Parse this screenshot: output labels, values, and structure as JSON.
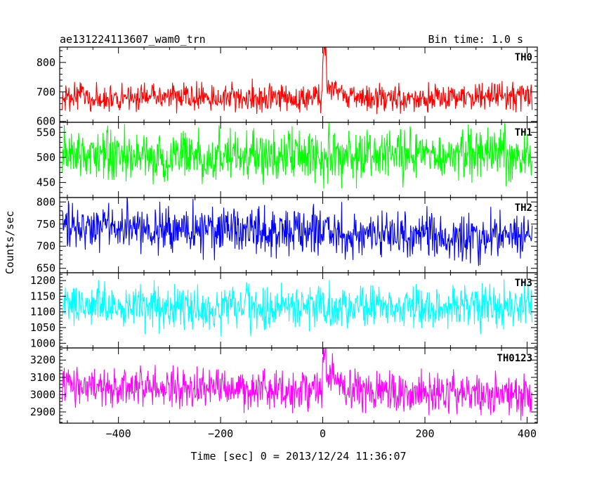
{
  "chart_data": {
    "type": "line",
    "title_left": "ae131224113607_wam0_trn",
    "title_right": "Bin time: 1.0 s",
    "xlabel": "Time [sec] 0 = 2013/12/24 11:36:07",
    "ylabel": "Counts/sec",
    "xlim": [
      -515,
      420
    ],
    "x_ticks": [
      -400,
      -200,
      0,
      200,
      400
    ],
    "x_data_range": [
      -510,
      410
    ],
    "bin_time_sec": 1.0,
    "grid": false,
    "panels": [
      {
        "name": "TH0",
        "color": "#ff0000",
        "ylim": [
          597,
          852
        ],
        "y_ticks": [
          600,
          700,
          800
        ],
        "baseline_mean": 680,
        "noise_halfwidth": 55,
        "features": [
          {
            "x_start": 0,
            "x_end": 8,
            "level": 840,
            "description": "spike"
          },
          {
            "x_start": 8,
            "x_end": 40,
            "level": 710,
            "description": "elevated decay"
          }
        ]
      },
      {
        "name": "TH1",
        "color": "#00ff00",
        "ylim": [
          420,
          570
        ],
        "y_ticks": [
          450,
          500,
          550
        ],
        "baseline_mean": 505,
        "noise_halfwidth": 60,
        "features": []
      },
      {
        "name": "TH2",
        "color": "#0000ff",
        "ylim": [
          640,
          810
        ],
        "y_ticks": [
          650,
          700,
          750,
          800
        ],
        "baseline_start": 745,
        "baseline_end": 720,
        "noise_halfwidth": 60,
        "features": []
      },
      {
        "name": "TH3",
        "color": "#00ffff",
        "ylim": [
          985,
          1225
        ],
        "y_ticks": [
          1000,
          1050,
          1100,
          1150,
          1200
        ],
        "baseline_mean": 1115,
        "noise_halfwidth": 80,
        "features": []
      },
      {
        "name": "TH0123",
        "color": "#ff00ff",
        "ylim": [
          2835,
          3270
        ],
        "y_ticks": [
          2900,
          3000,
          3100,
          3200
        ],
        "baseline_start": 3050,
        "baseline_end": 3000,
        "noise_halfwidth": 130,
        "features": [
          {
            "x_start": 0,
            "x_end": 8,
            "level": 3230,
            "description": "spike"
          },
          {
            "x_start": 8,
            "x_end": 40,
            "level": 3100,
            "description": "elevated decay"
          }
        ]
      }
    ]
  }
}
